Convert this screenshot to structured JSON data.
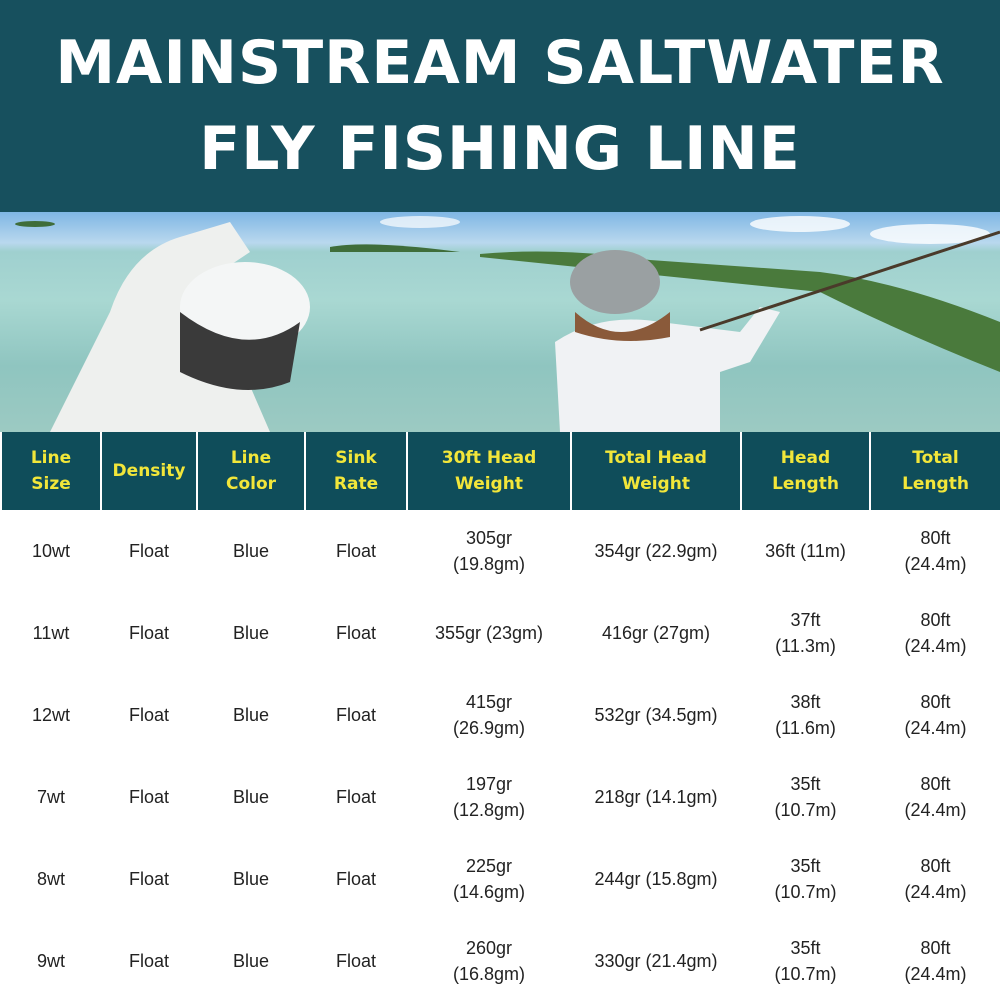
{
  "title": {
    "line1": "MAINSTREAM SALTWATER",
    "line2": "FLY FISHING LINE"
  },
  "colors": {
    "banner": "#17505e",
    "header": "#0f4d5a",
    "header_text": "#f2e63a"
  },
  "table": {
    "headers": [
      [
        "Line",
        "Size"
      ],
      [
        "Density",
        ""
      ],
      [
        "Line",
        "Color"
      ],
      [
        "Sink",
        "Rate"
      ],
      [
        "30ft Head",
        "Weight"
      ],
      [
        "Total Head",
        "Weight"
      ],
      [
        "Head",
        "Length"
      ],
      [
        "Total",
        "Length"
      ]
    ],
    "rows": [
      [
        [
          "10wt"
        ],
        [
          "Float"
        ],
        [
          "Blue"
        ],
        [
          "Float"
        ],
        [
          "305gr",
          "(19.8gm)"
        ],
        [
          "354gr (22.9gm)"
        ],
        [
          "36ft (11m)"
        ],
        [
          "80ft",
          "(24.4m)"
        ]
      ],
      [
        [
          "11wt"
        ],
        [
          "Float"
        ],
        [
          "Blue"
        ],
        [
          "Float"
        ],
        [
          "355gr (23gm)"
        ],
        [
          "416gr (27gm)"
        ],
        [
          "37ft",
          "(11.3m)"
        ],
        [
          "80ft",
          "(24.4m)"
        ]
      ],
      [
        [
          "12wt"
        ],
        [
          "Float"
        ],
        [
          "Blue"
        ],
        [
          "Float"
        ],
        [
          "415gr",
          "(26.9gm)"
        ],
        [
          "532gr (34.5gm)"
        ],
        [
          "38ft",
          "(11.6m)"
        ],
        [
          "80ft",
          "(24.4m)"
        ]
      ],
      [
        [
          "7wt"
        ],
        [
          "Float"
        ],
        [
          "Blue"
        ],
        [
          "Float"
        ],
        [
          "197gr",
          "(12.8gm)"
        ],
        [
          "218gr (14.1gm)"
        ],
        [
          "35ft",
          "(10.7m)"
        ],
        [
          "80ft",
          "(24.4m)"
        ]
      ],
      [
        [
          "8wt"
        ],
        [
          "Float"
        ],
        [
          "Blue"
        ],
        [
          "Float"
        ],
        [
          "225gr",
          "(14.6gm)"
        ],
        [
          "244gr (15.8gm)"
        ],
        [
          "35ft",
          "(10.7m)"
        ],
        [
          "80ft",
          "(24.4m)"
        ]
      ],
      [
        [
          "9wt"
        ],
        [
          "Float"
        ],
        [
          "Blue"
        ],
        [
          "Float"
        ],
        [
          "260gr",
          "(16.8gm)"
        ],
        [
          "330gr (21.4gm)"
        ],
        [
          "35ft",
          "(10.7m)"
        ],
        [
          "80ft",
          "(24.4m)"
        ]
      ]
    ]
  }
}
